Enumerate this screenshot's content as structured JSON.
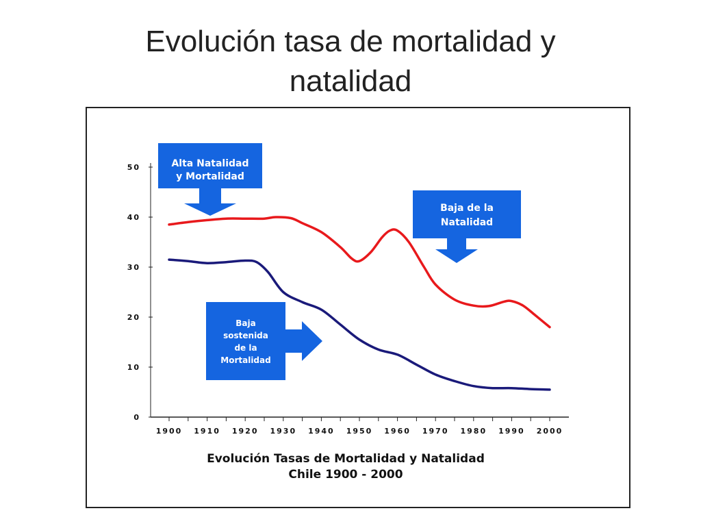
{
  "slide": {
    "title_line1": "Evolución tasa de mortalidad y",
    "title_line2": "natalidad"
  },
  "chart_data": {
    "type": "line",
    "title": "Evolución Tasas de Mortalidad y Natalidad",
    "subtitle": "Chile 1900 - 2000",
    "xlabel": "",
    "ylabel": "",
    "x_ticks": [
      "1900",
      "1910",
      "1920",
      "1930",
      "1940",
      "1950",
      "1960",
      "1970",
      "1980",
      "1990",
      "2000"
    ],
    "y_ticks": [
      "0",
      "10",
      "20",
      "30",
      "40",
      "50"
    ],
    "xlim": [
      1900,
      2000
    ],
    "ylim": [
      0,
      50
    ],
    "grid": false,
    "series": [
      {
        "color": "#e8191c",
        "x": [
          1900,
          1905,
          1910,
          1915,
          1920,
          1925,
          1928,
          1932,
          1935,
          1940,
          1945,
          1948,
          1950,
          1953,
          1956,
          1958,
          1960,
          1963,
          1967,
          1970,
          1975,
          1980,
          1984,
          1988,
          1990,
          1993,
          1996,
          2000
        ],
        "values": [
          38.5,
          39.0,
          39.4,
          39.7,
          39.7,
          39.7,
          40.0,
          39.8,
          38.8,
          37.0,
          34.0,
          31.7,
          31.2,
          33.0,
          36.0,
          37.3,
          37.3,
          35.0,
          30.0,
          26.5,
          23.5,
          22.3,
          22.2,
          23.1,
          23.2,
          22.3,
          20.5,
          18.0
        ]
      },
      {
        "color": "#1a1a7a",
        "x": [
          1900,
          1905,
          1910,
          1915,
          1920,
          1923,
          1926,
          1930,
          1935,
          1940,
          1945,
          1950,
          1955,
          1960,
          1965,
          1970,
          1975,
          1980,
          1985,
          1990,
          1995,
          2000
        ],
        "values": [
          31.5,
          31.2,
          30.8,
          31.0,
          31.3,
          31.0,
          29.0,
          25.0,
          23.0,
          21.5,
          18.5,
          15.5,
          13.5,
          12.5,
          10.5,
          8.5,
          7.2,
          6.2,
          5.8,
          5.8,
          5.6,
          5.5
        ]
      }
    ],
    "annotations": [
      {
        "lines": [
          "Alta Natalidad",
          "y  Mortalidad"
        ],
        "color": "#1565e0",
        "arrow": "down"
      },
      {
        "lines": [
          "Baja de la",
          "Natalidad"
        ],
        "color": "#1565e0",
        "arrow": "down"
      },
      {
        "lines": [
          "Baja",
          "sostenida",
          "de la",
          "Mortalidad"
        ],
        "color": "#1565e0",
        "arrow": "right"
      }
    ]
  }
}
